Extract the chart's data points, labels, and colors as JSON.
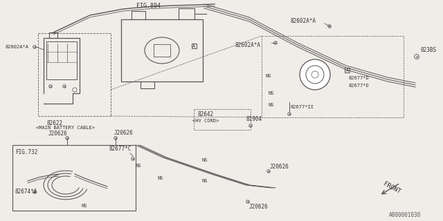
{
  "bg_color": "#f0ede8",
  "line_color": "#555555",
  "text_color": "#333333",
  "diagram_id": "A800001030",
  "labels": {
    "82602A_A_left": "82602A*A",
    "fig894": "FIG.894",
    "82622": "82622",
    "main_battery_cable": "<MAIN BATTERY CABLE>",
    "82602A_A_top": "82602A*A",
    "82602A_A_mid": "82602A*A",
    "023BS": "023BS",
    "82677D_top": "82677*D",
    "82677D_bot": "82677*D",
    "NS1": "NS",
    "NS2": "NS",
    "NS3": "NS",
    "NS4": "NS",
    "NS5": "NS",
    "NS6": "NS",
    "82642": "82642",
    "hv_cord": "<HV CORD>",
    "81904": "81904",
    "82677II": "82677*II",
    "J20626_1": "J20626",
    "J20626_2": "J20626",
    "J20626_3": "J20626",
    "J20626_4": "J20626",
    "fig732": "FIG.732",
    "82677C": "82677*C",
    "82674A": "82674*A",
    "NS_bottom": "NS",
    "front": "FRONT",
    "A_marker": "A"
  }
}
